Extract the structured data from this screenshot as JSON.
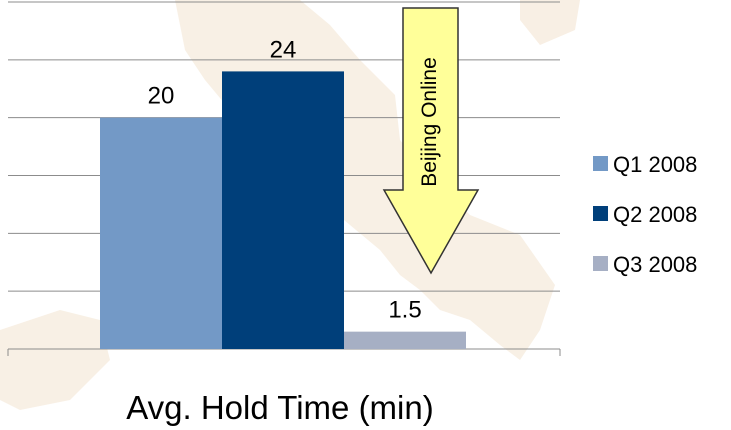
{
  "chart_data": {
    "type": "bar",
    "categories": [
      "Avg. Hold Time (min)"
    ],
    "series": [
      {
        "name": "Q1 2008",
        "values": [
          20
        ],
        "color": "#7399c6"
      },
      {
        "name": "Q2 2008",
        "values": [
          24
        ],
        "color": "#003f7a"
      },
      {
        "name": "Q3 2008",
        "values": [
          1.5
        ],
        "color": "#a6afc4"
      }
    ],
    "data_labels": [
      "20",
      "24",
      "1.5"
    ],
    "xlabel": "Avg. Hold Time (min)",
    "ylabel": "",
    "ylim": [
      0,
      30
    ],
    "grid": true,
    "legend": "right",
    "annotation": {
      "text": "Beijing Online",
      "shape": "down-arrow",
      "fill": "#ffff99",
      "stroke": "#333333"
    },
    "background_watermark": "faint map silhouette"
  }
}
